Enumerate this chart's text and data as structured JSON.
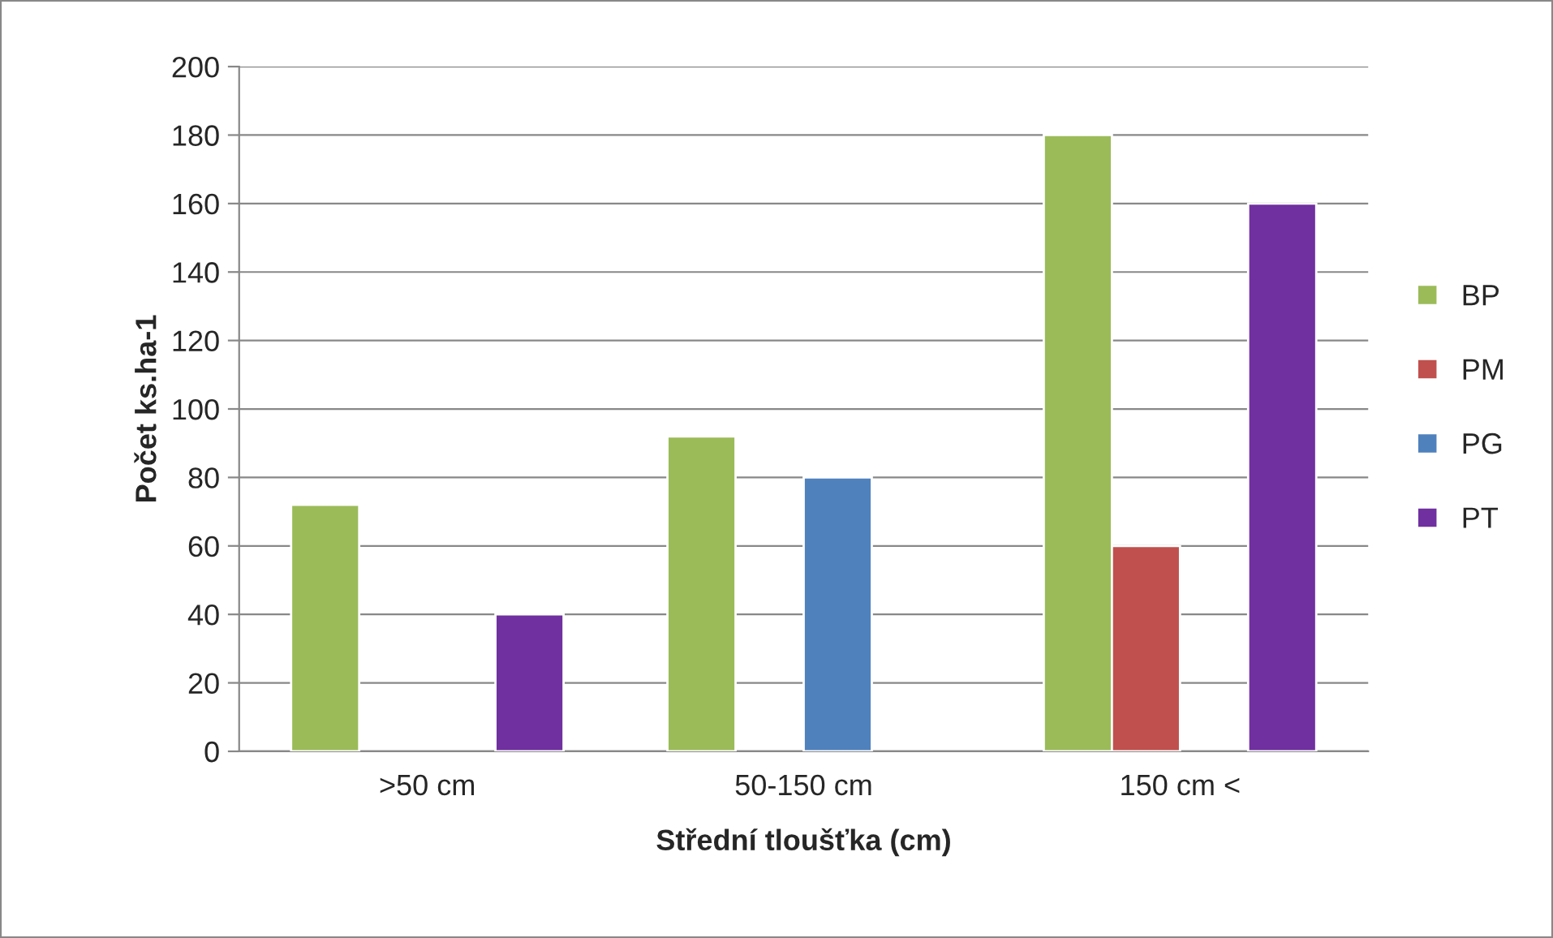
{
  "chart_data": {
    "type": "bar",
    "xlabel": "Střední tloušťka (cm)",
    "ylabel": "Počet ks.ha-1",
    "categories": [
      ">50 cm",
      "50-150 cm",
      "150 cm <"
    ],
    "series": [
      {
        "name": "BP",
        "color": "#9bbb59",
        "values": [
          72,
          92,
          180
        ]
      },
      {
        "name": "PM",
        "color": "#c0504d",
        "values": [
          null,
          null,
          60
        ]
      },
      {
        "name": "PG",
        "color": "#4f81bd",
        "values": [
          null,
          80,
          null
        ]
      },
      {
        "name": "PT",
        "color": "#7030a0",
        "values": [
          40,
          null,
          160
        ]
      }
    ],
    "ylim": [
      0,
      200
    ],
    "yticks": [
      0,
      20,
      40,
      60,
      80,
      100,
      120,
      140,
      160,
      180,
      200
    ],
    "grid": "y",
    "legend": "right"
  }
}
